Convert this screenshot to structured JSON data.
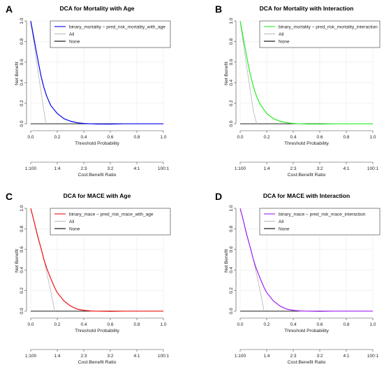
{
  "chart_data": [
    {
      "type": "line",
      "panel_letter": "A",
      "title": "DCA for Mortality with Age",
      "xlabel": "Threshold Probability",
      "ylabel": "Net Benefit",
      "x2label": "Cost:Benefit Ratio",
      "xlim": [
        0,
        1
      ],
      "ylim": [
        -0.02,
        1.0
      ],
      "x_ticks": [
        "0.0",
        "0.2",
        "0.4",
        "0.6",
        "0.8",
        "1.0"
      ],
      "y_ticks": [
        "0.0",
        "0.2",
        "0.4",
        "0.6",
        "0.8",
        "1.0"
      ],
      "ratio_ticks": [
        "1:100",
        "1:4",
        "2:3",
        "3:2",
        "4:1",
        "100:1"
      ],
      "grid": true,
      "legend_position": "top-right",
      "series": [
        {
          "name": "binary_mortality ~ pred_risk_mortality_with_age",
          "color": "#0000ee",
          "x": [
            0,
            0.02,
            0.04,
            0.06,
            0.08,
            0.1,
            0.12,
            0.15,
            0.2,
            0.25,
            0.3,
            0.35,
            0.4,
            0.45,
            0.5,
            0.6,
            0.7,
            0.8,
            1.0
          ],
          "y": [
            1.0,
            0.86,
            0.72,
            0.58,
            0.45,
            0.35,
            0.27,
            0.18,
            0.1,
            0.05,
            0.025,
            0.01,
            0.003,
            0.0,
            -0.002,
            -0.003,
            0.0,
            0.0,
            0.0
          ]
        },
        {
          "name": "All",
          "color": "#bdbdbd",
          "x": [
            0,
            0.05,
            0.1,
            0.115
          ],
          "y": [
            1.0,
            0.55,
            0.12,
            0.0
          ]
        },
        {
          "name": "None",
          "color": "#000000",
          "x": [
            0,
            1.0
          ],
          "y": [
            0,
            0
          ]
        }
      ]
    },
    {
      "type": "line",
      "panel_letter": "B",
      "title": "DCA for Mortality with Interaction",
      "xlabel": "Threshold Probability",
      "ylabel": "Net Benefit",
      "x2label": "Cost:Benefit Ratio",
      "xlim": [
        0,
        1
      ],
      "ylim": [
        -0.02,
        1.0
      ],
      "x_ticks": [
        "0.0",
        "0.2",
        "0.4",
        "0.6",
        "0.8",
        "1.0"
      ],
      "y_ticks": [
        "0.0",
        "0.2",
        "0.4",
        "0.6",
        "0.8",
        "1.0"
      ],
      "ratio_ticks": [
        "1:100",
        "1:4",
        "2:3",
        "3:2",
        "4:1",
        "100:1"
      ],
      "grid": true,
      "legend_position": "top-right",
      "series": [
        {
          "name": "binary_mortality ~ pred_risk_mortality_interaction",
          "color": "#22ee22",
          "x": [
            0,
            0.02,
            0.04,
            0.06,
            0.08,
            0.1,
            0.12,
            0.15,
            0.2,
            0.25,
            0.3,
            0.35,
            0.4,
            0.45,
            0.5,
            0.6,
            0.7,
            0.8,
            1.0
          ],
          "y": [
            1.0,
            0.86,
            0.72,
            0.58,
            0.46,
            0.36,
            0.28,
            0.19,
            0.1,
            0.05,
            0.025,
            0.01,
            0.003,
            0.0,
            -0.002,
            -0.003,
            0.0,
            0.0,
            0.0
          ]
        },
        {
          "name": "All",
          "color": "#bdbdbd",
          "x": [
            0,
            0.05,
            0.1,
            0.125
          ],
          "y": [
            1.0,
            0.55,
            0.12,
            0.0
          ]
        },
        {
          "name": "None",
          "color": "#000000",
          "x": [
            0,
            1.0
          ],
          "y": [
            0,
            0
          ]
        }
      ]
    },
    {
      "type": "line",
      "panel_letter": "C",
      "title": "DCA for MACE with Age",
      "xlabel": "Threshold Probability",
      "ylabel": "Net Benefit",
      "x2label": "Cost:Benefit Ratio",
      "xlim": [
        0,
        1
      ],
      "ylim": [
        -0.02,
        1.0
      ],
      "x_ticks": [
        "0.0",
        "0.2",
        "0.4",
        "0.6",
        "0.8",
        "1.0"
      ],
      "y_ticks": [
        "0.0",
        "0.2",
        "0.4",
        "0.6",
        "0.8",
        "1.0"
      ],
      "ratio_ticks": [
        "1:100",
        "1:4",
        "2:3",
        "3:2",
        "4:1",
        "100:1"
      ],
      "grid": true,
      "legend_position": "top-right",
      "series": [
        {
          "name": "binary_mace ~ pred_risk_mace_with_age",
          "color": "#ee1111",
          "x": [
            0,
            0.02,
            0.05,
            0.08,
            0.1,
            0.12,
            0.15,
            0.18,
            0.2,
            0.25,
            0.3,
            0.35,
            0.4,
            0.45,
            0.5,
            0.6,
            0.7,
            0.8,
            1.0
          ],
          "y": [
            1.0,
            0.9,
            0.74,
            0.6,
            0.5,
            0.42,
            0.32,
            0.23,
            0.18,
            0.1,
            0.05,
            0.02,
            0.008,
            0.002,
            0.0,
            -0.002,
            0.0,
            0.0,
            0.0
          ]
        },
        {
          "name": "All",
          "color": "#bdbdbd",
          "x": [
            0,
            0.05,
            0.1,
            0.15,
            0.18
          ],
          "y": [
            1.0,
            0.75,
            0.5,
            0.2,
            0.0
          ]
        },
        {
          "name": "None",
          "color": "#000000",
          "x": [
            0,
            1.0
          ],
          "y": [
            0,
            0
          ]
        }
      ]
    },
    {
      "type": "line",
      "panel_letter": "D",
      "title": "DCA for MACE with Interaction",
      "xlabel": "Threshold Probability",
      "ylabel": "Net Benefit",
      "x2label": "Cost:Benefit Ratio",
      "xlim": [
        0,
        1
      ],
      "ylim": [
        -0.02,
        1.0
      ],
      "x_ticks": [
        "0.0",
        "0.2",
        "0.4",
        "0.6",
        "0.8",
        "1.0"
      ],
      "y_ticks": [
        "0.0",
        "0.2",
        "0.4",
        "0.6",
        "0.8",
        "1.0"
      ],
      "ratio_ticks": [
        "1:100",
        "1:4",
        "2:3",
        "3:2",
        "4:1",
        "100:1"
      ],
      "grid": true,
      "legend_position": "top-right",
      "series": [
        {
          "name": "binary_mace ~ pred_risk_mace_interaction",
          "color": "#a020f0",
          "x": [
            0,
            0.02,
            0.05,
            0.08,
            0.1,
            0.12,
            0.15,
            0.18,
            0.2,
            0.25,
            0.3,
            0.35,
            0.4,
            0.45,
            0.5,
            0.6,
            0.7,
            0.8,
            1.0
          ],
          "y": [
            1.0,
            0.9,
            0.74,
            0.6,
            0.5,
            0.42,
            0.32,
            0.23,
            0.18,
            0.1,
            0.05,
            0.02,
            0.008,
            0.002,
            0.0,
            -0.002,
            0.0,
            0.0,
            0.0
          ]
        },
        {
          "name": "All",
          "color": "#bdbdbd",
          "x": [
            0,
            0.05,
            0.1,
            0.15,
            0.18
          ],
          "y": [
            1.0,
            0.75,
            0.5,
            0.2,
            0.0
          ]
        },
        {
          "name": "None",
          "color": "#000000",
          "x": [
            0,
            1.0
          ],
          "y": [
            0,
            0
          ]
        }
      ]
    }
  ]
}
